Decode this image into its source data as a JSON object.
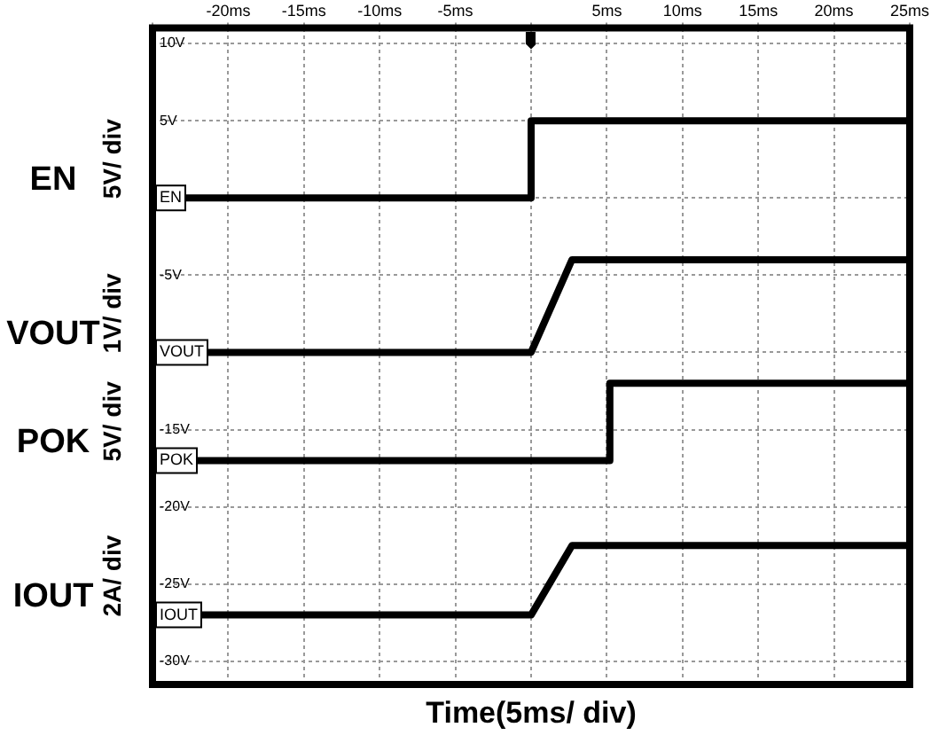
{
  "chart_data": {
    "type": "line",
    "xlabel": "Time(5ms/ div)",
    "annotations": [
      "5V/ div",
      "1V/ div",
      "5V/ div",
      "2A/ div"
    ],
    "series": [
      {
        "name": "EN",
        "color": "#000000",
        "x": [
          -25,
          0,
          0,
          25
        ],
        "values": [
          0,
          0,
          5,
          5
        ]
      },
      {
        "name": "VOUT",
        "color": "#000000",
        "x": [
          -25,
          0,
          2.7,
          25
        ],
        "values": [
          -10,
          -10,
          -4,
          -4
        ]
      },
      {
        "name": "POK",
        "color": "#000000",
        "x": [
          -25,
          5.2,
          5.2,
          25
        ],
        "values": [
          -17,
          -17,
          -12,
          -12
        ]
      },
      {
        "name": "IOUT",
        "color": "#000000",
        "x": [
          -25,
          0,
          2.7,
          25
        ],
        "values": [
          -27,
          -27,
          -22.5,
          -22.5
        ]
      }
    ],
    "xlim": [
      -25,
      25
    ],
    "xticks": [
      {
        "value": -25,
        "label": null
      },
      {
        "value": -20,
        "label": "-20ms"
      },
      {
        "value": -15,
        "label": "-15ms"
      },
      {
        "value": -10,
        "label": "-10ms"
      },
      {
        "value": -5,
        "label": "-5ms"
      },
      {
        "value": 0,
        "label": null
      },
      {
        "value": 5,
        "label": "5ms"
      },
      {
        "value": 10,
        "label": "10ms"
      },
      {
        "value": 15,
        "label": "15ms"
      },
      {
        "value": 20,
        "label": "20ms"
      },
      {
        "value": 25,
        "label": "25ms"
      }
    ],
    "ylim": [
      -31.5,
      11
    ],
    "yticks": [
      {
        "value": 10,
        "label": "10V"
      },
      {
        "value": 5,
        "label": "5V"
      },
      {
        "value": 0,
        "label": null
      },
      {
        "value": -5,
        "label": "-5V"
      },
      {
        "value": -10,
        "label": null
      },
      {
        "value": -15,
        "label": "-15V"
      },
      {
        "value": -20,
        "label": "-20V"
      },
      {
        "value": -25,
        "label": "-25V"
      },
      {
        "value": -30,
        "label": "-30V"
      }
    ],
    "grid": true,
    "legend": "left",
    "marker": "none",
    "line_style": "solid"
  }
}
